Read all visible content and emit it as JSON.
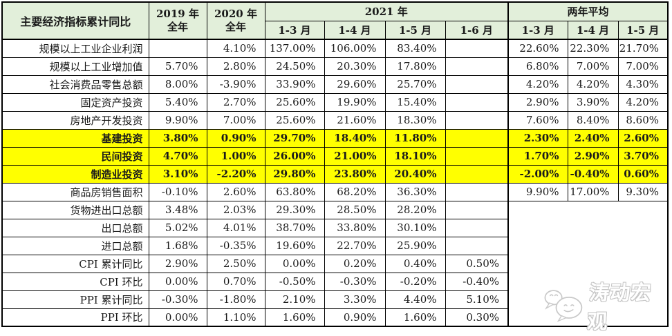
{
  "header": {
    "indicator": "主要经济指标累计同比",
    "col_2019": "2019 年\n全年",
    "col_2020": "2020 年\n全年",
    "group_2021": "2021 年",
    "group_avg": "两年平均",
    "months_2021": [
      "1-3 月",
      "1-4 月",
      "1-5 月",
      "1-6 月"
    ],
    "months_avg": [
      "1-3 月",
      "1-4 月",
      "1-5 月"
    ]
  },
  "table": {
    "rows": [
      {
        "label": "规模以上工业企业利润",
        "highlight": false,
        "values": [
          "",
          "4.10%",
          "137.00%",
          "106.00%",
          "83.40%",
          "",
          "22.60%",
          "22.30%",
          "21.70%"
        ]
      },
      {
        "label": "规模以上工业增加值",
        "highlight": false,
        "values": [
          "5.70%",
          "2.80%",
          "24.50%",
          "20.30%",
          "17.80%",
          "",
          "6.80%",
          "7.00%",
          "7.00%"
        ]
      },
      {
        "label": "社会消费品零售总额",
        "highlight": false,
        "values": [
          "8.00%",
          "-3.90%",
          "33.90%",
          "29.60%",
          "25.70%",
          "",
          "4.20%",
          "4.20%",
          "4.30%"
        ]
      },
      {
        "label": "固定资产投资",
        "highlight": false,
        "values": [
          "5.40%",
          "2.70%",
          "25.60%",
          "19.90%",
          "15.40%",
          "",
          "2.90%",
          "3.90%",
          "4.20%"
        ]
      },
      {
        "label": "房地产开发投资",
        "highlight": false,
        "values": [
          "9.90%",
          "7.00%",
          "25.60%",
          "21.60%",
          "18.30%",
          "",
          "7.60%",
          "8.40%",
          "8.60%"
        ]
      },
      {
        "label": "基建投资",
        "highlight": true,
        "values": [
          "3.80%",
          "0.90%",
          "29.70%",
          "18.40%",
          "11.80%",
          "",
          "2.30%",
          "2.40%",
          "2.60%"
        ]
      },
      {
        "label": "民间投资",
        "highlight": true,
        "values": [
          "4.70%",
          "1.00%",
          "26.00%",
          "21.00%",
          "18.10%",
          "",
          "1.70%",
          "2.90%",
          "3.70%"
        ]
      },
      {
        "label": "制造业投资",
        "highlight": true,
        "values": [
          "3.10%",
          "-2.20%",
          "29.80%",
          "23.80%",
          "20.40%",
          "",
          "-2.00%",
          "-0.40%",
          "0.60%"
        ]
      },
      {
        "label": "商品房销售面积",
        "highlight": false,
        "values": [
          "-0.10%",
          "2.60%",
          "63.80%",
          "68.20%",
          "36.30%",
          "",
          "9.90%",
          "17.00%",
          "9.30%"
        ]
      },
      {
        "label": "货物进出口总额",
        "highlight": false,
        "values": [
          "3.48%",
          "2.03%",
          "29.30%",
          "28.50%",
          "28.20%",
          ""
        ]
      },
      {
        "label": "出口总额",
        "highlight": false,
        "values": [
          "5.02%",
          "4.01%",
          "38.70%",
          "33.80%",
          "30.10%",
          ""
        ]
      },
      {
        "label": "进口总额",
        "highlight": false,
        "values": [
          "1.68%",
          "-0.35%",
          "19.60%",
          "22.70%",
          "25.90%",
          ""
        ]
      },
      {
        "label": "CPI 累计同比",
        "highlight": false,
        "values": [
          "2.90%",
          "2.50%",
          "0.00%",
          "0.20%",
          "0.40%",
          "0.50%"
        ]
      },
      {
        "label": "CPI 环比",
        "highlight": false,
        "values": [
          "0.00%",
          "0.70%",
          "-0.50%",
          "-0.30%",
          "-0.20%",
          "-0.40%"
        ]
      },
      {
        "label": "PPI 累计同比",
        "highlight": false,
        "values": [
          "-0.30%",
          "-1.80%",
          "2.10%",
          "3.30%",
          "4.40%",
          "5.10%"
        ]
      },
      {
        "label": "PPI 环比",
        "highlight": false,
        "values": [
          "0.00%",
          "1.10%",
          "1.60%",
          "0.90%",
          "1.60%",
          "0.30%"
        ]
      }
    ]
  },
  "watermark": {
    "text": "涛动宏观",
    "icon": "wechat-icon"
  },
  "colors": {
    "header_bg": "#e2efda",
    "highlight_bg": "#ffff00",
    "border": "#000000",
    "watermark": "#c6c6c6"
  }
}
